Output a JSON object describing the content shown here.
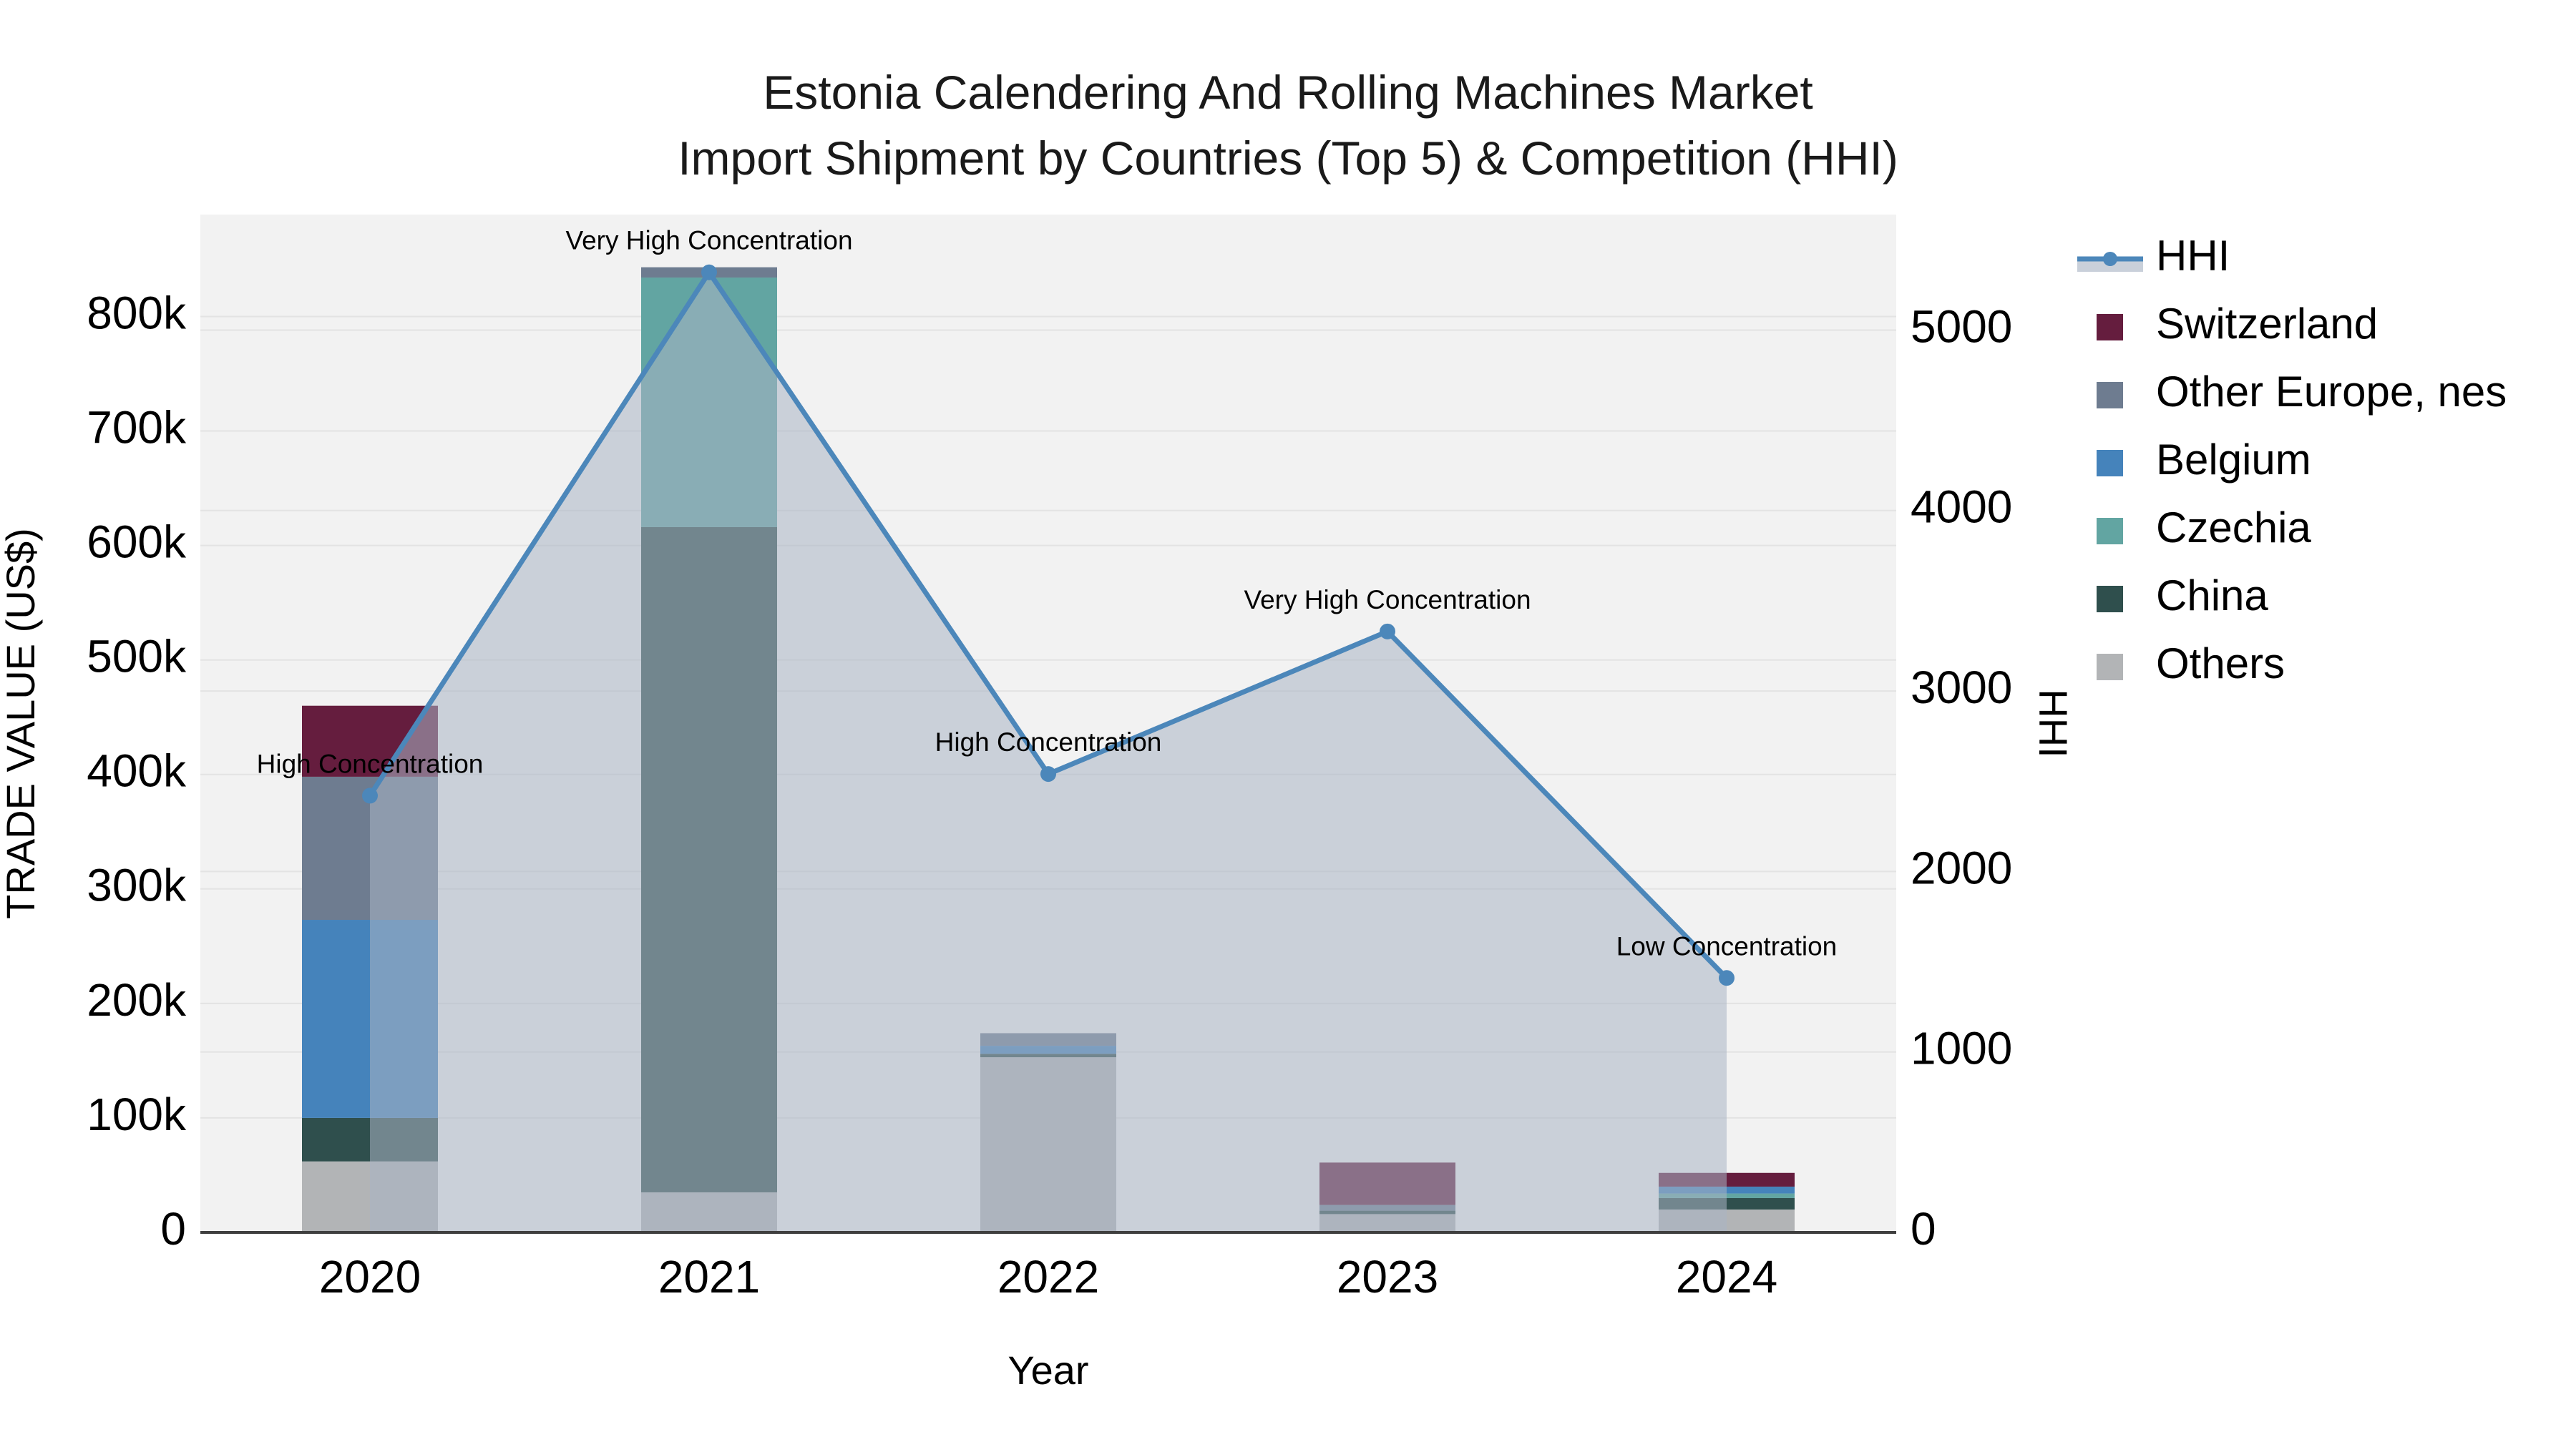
{
  "title": {
    "line1": "Estonia Calendering And Rolling Machines Market",
    "line2": "Import Shipment by Countries (Top 5) & Competition (HHI)"
  },
  "colors": {
    "background": "#ffffff",
    "plot_background": "#f2f2f2",
    "grid": "#e3e3e3",
    "axis_line": "#3f3f3f",
    "text": "#000000",
    "title_text": "#1a1a1a",
    "hhi_line": "#4c87ba",
    "hhi_area_fill": "#a9b4c4",
    "hhi_area_opacity": 0.55,
    "hhi_legend_band": "#c9d0da"
  },
  "chart_data": {
    "type": "combo: stacked-bar + line-area",
    "x": {
      "title": "Year",
      "categories": [
        "2020",
        "2021",
        "2022",
        "2023",
        "2024"
      ]
    },
    "y_left": {
      "title": "TRADE VALUE (US$)",
      "unit": "US$ (values in thousands)",
      "max_k": 889,
      "ticks": [
        {
          "value_k": 0,
          "label": "0"
        },
        {
          "value_k": 100,
          "label": "100k"
        },
        {
          "value_k": 200,
          "label": "200k"
        },
        {
          "value_k": 300,
          "label": "300k"
        },
        {
          "value_k": 400,
          "label": "400k"
        },
        {
          "value_k": 500,
          "label": "500k"
        },
        {
          "value_k": 600,
          "label": "600k"
        },
        {
          "value_k": 700,
          "label": "700k"
        },
        {
          "value_k": 800,
          "label": "800k"
        }
      ]
    },
    "y_right": {
      "title": "HHI",
      "max": 5640,
      "ticks": [
        {
          "value": 0,
          "label": "0"
        },
        {
          "value": 1000,
          "label": "1000"
        },
        {
          "value": 2000,
          "label": "2000"
        },
        {
          "value": 3000,
          "label": "3000"
        },
        {
          "value": 4000,
          "label": "4000"
        },
        {
          "value": 5000,
          "label": "5000"
        }
      ]
    },
    "stack_order_bottom_to_top": [
      "Others",
      "China",
      "Czechia",
      "Belgium",
      "Other Europe, nes",
      "Switzerland"
    ],
    "series": [
      {
        "name": "Switzerland",
        "type": "bar",
        "color": "#651d3e",
        "values_k": [
          62,
          0,
          0,
          37,
          12
        ]
      },
      {
        "name": "Other Europe, nes",
        "type": "bar",
        "color": "#6e7c90",
        "values_k": [
          125,
          9,
          11,
          5,
          0
        ]
      },
      {
        "name": "Belgium",
        "type": "bar",
        "color": "#4583bb",
        "values_k": [
          173,
          0,
          7,
          0,
          6
        ]
      },
      {
        "name": "Czechia",
        "type": "bar",
        "color": "#62a5a2",
        "values_k": [
          0,
          218,
          0,
          0,
          4
        ]
      },
      {
        "name": "China",
        "type": "bar",
        "color": "#2f4f4d",
        "values_k": [
          38,
          581,
          3,
          3,
          10
        ]
      },
      {
        "name": "Others",
        "type": "bar",
        "color": "#b2b4b6",
        "values_k": [
          62,
          35,
          153,
          16,
          20
        ]
      }
    ],
    "hhi": {
      "name": "HHI",
      "type": "line+area",
      "values": [
        2420,
        5320,
        2540,
        3330,
        1410
      ]
    },
    "annotations": [
      {
        "year": "2020",
        "text": "High Concentration"
      },
      {
        "year": "2021",
        "text": "Very High Concentration"
      },
      {
        "year": "2022",
        "text": "High Concentration"
      },
      {
        "year": "2023",
        "text": "Very High Concentration"
      },
      {
        "year": "2024",
        "text": "Low Concentration"
      }
    ]
  },
  "legend": {
    "items": [
      {
        "label": "HHI",
        "kind": "line"
      },
      {
        "label": "Switzerland",
        "kind": "bar",
        "color": "#651d3e"
      },
      {
        "label": "Other Europe, nes",
        "kind": "bar",
        "color": "#6e7c90"
      },
      {
        "label": "Belgium",
        "kind": "bar",
        "color": "#4583bb"
      },
      {
        "label": "Czechia",
        "kind": "bar",
        "color": "#62a5a2"
      },
      {
        "label": "China",
        "kind": "bar",
        "color": "#2f4f4d"
      },
      {
        "label": "Others",
        "kind": "bar",
        "color": "#b2b4b6"
      }
    ]
  }
}
